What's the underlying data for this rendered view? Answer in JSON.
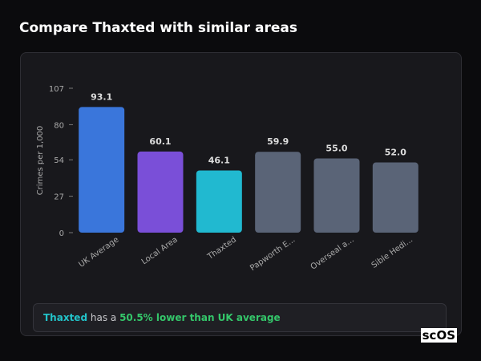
{
  "chart_data": {
    "type": "bar",
    "title": "Compare Thaxted with similar areas",
    "ylabel": "Crimes per 1,000",
    "categories": [
      "UK Average",
      "Local Area",
      "Thaxted",
      "Papworth E...",
      "Overseal a...",
      "Sible Hedi..."
    ],
    "values": [
      93.1,
      60.1,
      46.1,
      59.9,
      55.0,
      52.0
    ],
    "value_labels": [
      "93.1",
      "60.1",
      "46.1",
      "59.9",
      "55.0",
      "52.0"
    ],
    "colors": [
      "#3a76db",
      "#7a4fd8",
      "#21b9d0",
      "#5a6477",
      "#5a6477",
      "#5a6477"
    ],
    "ylim": [
      0,
      107
    ],
    "yticks": [
      0,
      27,
      54,
      80,
      107
    ]
  },
  "footer": {
    "place": "Thaxted",
    "text": "has a",
    "highlight": "50.5% lower than UK average"
  },
  "logo": "scOS"
}
